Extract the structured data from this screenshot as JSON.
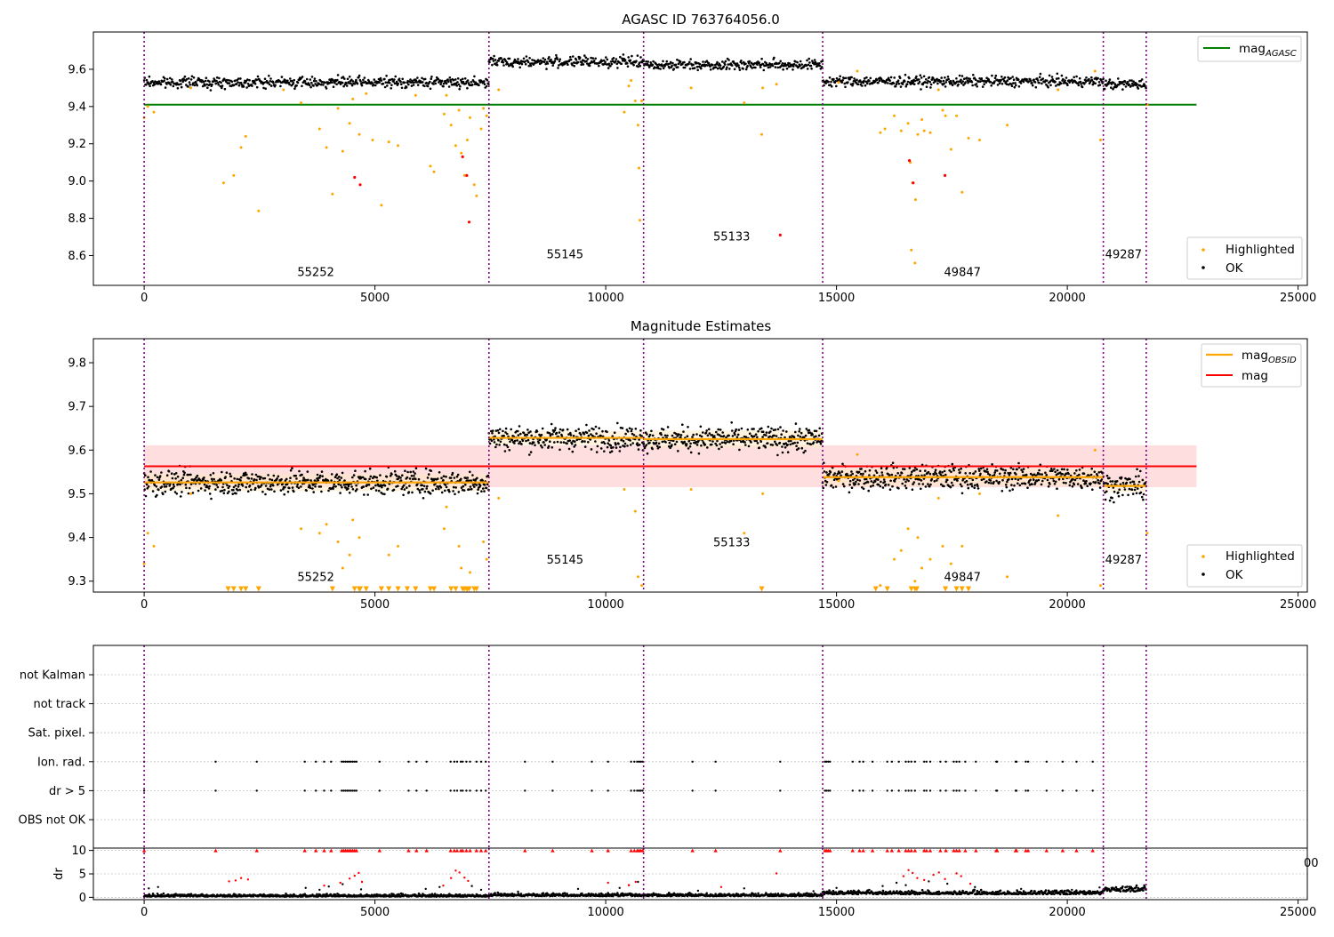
{
  "figure": {
    "title": "AGASC ID 763764056.0"
  },
  "chart_data": [
    {
      "id": "agasc",
      "type": "scatter",
      "title": "",
      "xlabel": "",
      "ylabel": "",
      "xlim": [
        -1100,
        25200
      ],
      "ylim": [
        8.44,
        9.8
      ],
      "xticks": [
        0,
        5000,
        10000,
        15000,
        20000,
        25000
      ],
      "yticks": [
        8.6,
        8.8,
        9.0,
        9.2,
        9.4,
        9.6
      ],
      "xtick_labels": [
        "0",
        "5000",
        "10000",
        "15000",
        "20000",
        "25000"
      ],
      "ytick_labels": [
        "8.6",
        "8.8",
        "9.0",
        "9.2",
        "9.4",
        "9.6"
      ],
      "obsid_boundaries": [
        0,
        7470,
        10820,
        14700,
        20780,
        21710
      ],
      "obsid_labels": [
        {
          "text": "55252",
          "x": 3320,
          "y": 8.49
        },
        {
          "text": "55145",
          "x": 8720,
          "y": 8.585
        },
        {
          "text": "55133",
          "x": 12330,
          "y": 8.68
        },
        {
          "text": "49847",
          "x": 17330,
          "y": 8.49
        },
        {
          "text": "49287",
          "x": 20820,
          "y": 8.585
        }
      ],
      "reference_line": {
        "name": "mag_AGASC",
        "label": "mag",
        "subscript": "AGASC",
        "y": 9.41,
        "x": [
          0,
          22800
        ],
        "color": "#008000"
      },
      "obs_levels": [
        9.53,
        9.64,
        9.625,
        9.535,
        9.52
      ],
      "obs_jitter": 0.014,
      "highlight_rows": [
        [
          0,
          9.34
        ],
        [
          80,
          9.4
        ],
        [
          210,
          9.37
        ],
        [
          1010,
          9.5
        ],
        [
          1720,
          8.99
        ],
        [
          1940,
          9.03
        ],
        [
          2100,
          9.18
        ],
        [
          2200,
          9.24
        ],
        [
          2480,
          8.84
        ],
        [
          3020,
          9.49
        ],
        [
          3400,
          9.42
        ],
        [
          3800,
          9.28
        ],
        [
          3950,
          9.18
        ],
        [
          4080,
          8.93
        ],
        [
          4200,
          9.39
        ],
        [
          4300,
          9.16
        ],
        [
          4450,
          9.31
        ],
        [
          4520,
          9.44
        ],
        [
          4660,
          9.25
        ],
        [
          4810,
          9.47
        ],
        [
          4950,
          9.22
        ],
        [
          5140,
          8.87
        ],
        [
          5300,
          9.21
        ],
        [
          5500,
          9.19
        ],
        [
          5880,
          9.46
        ],
        [
          6200,
          9.08
        ],
        [
          6280,
          9.05
        ],
        [
          6500,
          9.36
        ],
        [
          6550,
          9.46
        ],
        [
          6650,
          9.3
        ],
        [
          6750,
          9.19
        ],
        [
          6820,
          9.38
        ],
        [
          6870,
          9.15
        ],
        [
          6940,
          9.03
        ],
        [
          7000,
          9.22
        ],
        [
          7060,
          9.34
        ],
        [
          7150,
          8.98
        ],
        [
          7200,
          8.92
        ],
        [
          7300,
          9.28
        ],
        [
          7350,
          9.39
        ],
        [
          7420,
          9.35
        ],
        [
          7680,
          9.49
        ],
        [
          10400,
          9.37
        ],
        [
          10640,
          9.43
        ],
        [
          10700,
          9.3
        ],
        [
          10720,
          9.07
        ],
        [
          10740,
          8.79
        ],
        [
          10780,
          9.43
        ],
        [
          10500,
          9.51
        ],
        [
          10550,
          9.54
        ],
        [
          11850,
          9.5
        ],
        [
          13000,
          9.42
        ],
        [
          13380,
          9.25
        ],
        [
          13400,
          9.5
        ],
        [
          13700,
          9.52
        ],
        [
          15050,
          9.53
        ],
        [
          15450,
          9.59
        ],
        [
          15950,
          9.26
        ],
        [
          16050,
          9.28
        ],
        [
          16250,
          9.35
        ],
        [
          16400,
          9.27
        ],
        [
          16550,
          9.31
        ],
        [
          16620,
          8.63
        ],
        [
          16700,
          8.56
        ],
        [
          16600,
          9.1
        ],
        [
          16650,
          8.99
        ],
        [
          16710,
          8.9
        ],
        [
          16760,
          9.25
        ],
        [
          16850,
          9.33
        ],
        [
          16900,
          9.27
        ],
        [
          17030,
          9.26
        ],
        [
          17210,
          9.49
        ],
        [
          17300,
          9.38
        ],
        [
          17360,
          9.35
        ],
        [
          17480,
          9.17
        ],
        [
          17600,
          9.35
        ],
        [
          17720,
          8.94
        ],
        [
          17860,
          9.23
        ],
        [
          18100,
          9.22
        ],
        [
          18700,
          9.3
        ],
        [
          19800,
          9.49
        ],
        [
          20600,
          9.59
        ],
        [
          20720,
          9.22
        ],
        [
          21730,
          9.41
        ]
      ],
      "flagged_rows": [
        [
          4560,
          9.02
        ],
        [
          4680,
          8.98
        ],
        [
          6900,
          9.13
        ],
        [
          6990,
          9.03
        ],
        [
          7040,
          8.78
        ],
        [
          13780,
          8.71
        ],
        [
          16580,
          9.11
        ],
        [
          16660,
          8.99
        ],
        [
          17350,
          9.03
        ]
      ],
      "series": [
        {
          "name": "Highlighted",
          "color": "#ffa500"
        },
        {
          "name": "OK",
          "color": "#000000"
        }
      ],
      "legend_top": "top-right",
      "legend_bottom": "bottom-right"
    },
    {
      "id": "estimates",
      "type": "scatter",
      "title": "Magnitude Estimates",
      "xlabel": "",
      "ylabel": "",
      "xlim": [
        -1100,
        25200
      ],
      "ylim": [
        9.275,
        9.855
      ],
      "xticks": [
        0,
        5000,
        10000,
        15000,
        20000,
        25000
      ],
      "yticks": [
        9.3,
        9.4,
        9.5,
        9.6,
        9.7,
        9.8
      ],
      "xtick_labels": [
        "0",
        "5000",
        "10000",
        "15000",
        "20000",
        "25000"
      ],
      "ytick_labels": [
        "9.3",
        "9.4",
        "9.5",
        "9.6",
        "9.7",
        "9.8"
      ],
      "obsid_boundaries": [
        0,
        7470,
        10820,
        14700,
        20780,
        21710
      ],
      "obsid_labels": [
        {
          "text": "55252",
          "x": 3320,
          "y": 9.3
        },
        {
          "text": "55145",
          "x": 8720,
          "y": 9.34
        },
        {
          "text": "55133",
          "x": 12330,
          "y": 9.38
        },
        {
          "text": "49847",
          "x": 17330,
          "y": 9.3
        },
        {
          "text": "49287",
          "x": 20820,
          "y": 9.34
        }
      ],
      "mag_obsid": [
        {
          "x0": 0,
          "x1": 7470,
          "y": 9.526,
          "sigma": 0.02
        },
        {
          "x0": 7470,
          "x1": 10820,
          "y": 9.628,
          "sigma": 0.016
        },
        {
          "x0": 10820,
          "x1": 14700,
          "y": 9.625,
          "sigma": 0.02
        },
        {
          "x0": 14700,
          "x1": 20780,
          "y": 9.538,
          "sigma": 0.02
        },
        {
          "x0": 20780,
          "x1": 21710,
          "y": 9.518,
          "sigma": 0.014
        }
      ],
      "mag": {
        "y": 9.563,
        "band": [
          9.515,
          9.611
        ],
        "x": [
          0,
          22800
        ],
        "color": "#ff0000"
      },
      "highlight_rows": [
        [
          0,
          9.34
        ],
        [
          80,
          9.41
        ],
        [
          210,
          9.38
        ],
        [
          1010,
          9.5
        ],
        [
          3400,
          9.42
        ],
        [
          3800,
          9.41
        ],
        [
          3950,
          9.43
        ],
        [
          4200,
          9.39
        ],
        [
          4300,
          9.33
        ],
        [
          4450,
          9.36
        ],
        [
          4520,
          9.44
        ],
        [
          4660,
          9.4
        ],
        [
          5300,
          9.36
        ],
        [
          5500,
          9.38
        ],
        [
          6500,
          9.42
        ],
        [
          6550,
          9.47
        ],
        [
          6820,
          9.38
        ],
        [
          6870,
          9.33
        ],
        [
          7060,
          9.32
        ],
        [
          7350,
          9.39
        ],
        [
          7420,
          9.35
        ],
        [
          7680,
          9.49
        ],
        [
          10400,
          9.51
        ],
        [
          10640,
          9.46
        ],
        [
          10700,
          9.31
        ],
        [
          10780,
          9.29
        ],
        [
          11850,
          9.51
        ],
        [
          13000,
          9.41
        ],
        [
          13400,
          9.5
        ],
        [
          15050,
          9.53
        ],
        [
          15450,
          9.59
        ],
        [
          15950,
          9.29
        ],
        [
          16250,
          9.35
        ],
        [
          16400,
          9.37
        ],
        [
          16550,
          9.42
        ],
        [
          16700,
          9.3
        ],
        [
          16760,
          9.4
        ],
        [
          16850,
          9.33
        ],
        [
          17030,
          9.35
        ],
        [
          17210,
          9.49
        ],
        [
          17300,
          9.38
        ],
        [
          17480,
          9.34
        ],
        [
          17720,
          9.38
        ],
        [
          18100,
          9.5
        ],
        [
          18700,
          9.31
        ],
        [
          19800,
          9.45
        ],
        [
          20600,
          9.6
        ],
        [
          20720,
          9.29
        ],
        [
          21730,
          9.41
        ]
      ],
      "lower_limit_x": [
        1820,
        1940,
        2100,
        2200,
        2480,
        4080,
        4560,
        4660,
        4680,
        4810,
        5140,
        5300,
        5500,
        5700,
        5880,
        6200,
        6280,
        6650,
        6750,
        6900,
        6940,
        6990,
        7000,
        7040,
        7150,
        7200,
        13380,
        15850,
        16100,
        16620,
        16700,
        16740,
        17360,
        17600,
        17720,
        17860
      ],
      "series": [
        {
          "name": "Highlighted",
          "color": "#ffa500"
        },
        {
          "name": "OK",
          "color": "#000000"
        }
      ],
      "lines_legend": [
        {
          "name": "mag_OBSID",
          "label": "mag",
          "subscript": "OBSID",
          "color": "#ffa500"
        },
        {
          "name": "mag",
          "label": "mag",
          "subscript": "",
          "color": "#ff0000"
        }
      ]
    },
    {
      "id": "flags",
      "type": "scatter",
      "title": "",
      "xlabel": "",
      "ylabel": "",
      "xlim": [
        -1100,
        25200
      ],
      "categories": [
        "not Kalman",
        "not track",
        "Sat. pixel.",
        "Ion. rad.",
        "dr > 5",
        "OBS not OK"
      ],
      "obsid_boundaries": [
        0,
        7470,
        10820,
        14700,
        20780,
        21710
      ],
      "flag_x": [
        0,
        1550,
        2440,
        3480,
        3720,
        3900,
        4050,
        4280,
        4320,
        4360,
        4400,
        4440,
        4480,
        4520,
        4560,
        4600,
        5100,
        5730,
        5900,
        6120,
        6640,
        6720,
        6780,
        6860,
        6900,
        6980,
        7060,
        7200,
        7300,
        7400,
        8250,
        8850,
        9700,
        10050,
        10550,
        10620,
        10680,
        10720,
        10760,
        10800,
        11880,
        12380,
        13780,
        14750,
        14780,
        14820,
        14860,
        15350,
        15500,
        15580,
        15780,
        16100,
        16200,
        16350,
        16500,
        16560,
        16620,
        16700,
        16900,
        16950,
        17030,
        17250,
        17370,
        17540,
        17600,
        17660,
        17790,
        18020,
        18460,
        18480,
        18880,
        18900,
        19100,
        19150,
        19550,
        19900,
        20200,
        20550
      ],
      "flag_rows": [
        "Ion. rad.",
        "dr > 5"
      ]
    },
    {
      "id": "dr",
      "type": "scatter",
      "title": "",
      "xlabel": "",
      "ylabel": "dr",
      "xlim": [
        -1100,
        25200
      ],
      "ylim": [
        -0.5,
        10.5
      ],
      "xticks": [
        0,
        5000,
        10000,
        15000,
        20000,
        25000
      ],
      "yticks": [
        0,
        5,
        10
      ],
      "xtick_labels": [
        "0",
        "5000",
        "10000",
        "15000",
        "20000",
        "25000"
      ],
      "ytick_labels": [
        "0",
        "5",
        "10"
      ],
      "obsid_boundaries": [
        0,
        7470,
        10820,
        14700,
        20780,
        21710
      ],
      "dr_levels": [
        0.3,
        0.4,
        0.4,
        0.8,
        1.4
      ],
      "outlier_rows": [
        [
          1840,
          3.4
        ],
        [
          1980,
          3.6
        ],
        [
          2100,
          4.1
        ],
        [
          2250,
          3.8
        ],
        [
          3900,
          2.5
        ],
        [
          4250,
          3.1
        ],
        [
          4450,
          4.0
        ],
        [
          4560,
          4.6
        ],
        [
          4650,
          5.2
        ],
        [
          4720,
          3.3
        ],
        [
          6480,
          2.5
        ],
        [
          6650,
          4.1
        ],
        [
          6750,
          5.7
        ],
        [
          6830,
          5.3
        ],
        [
          6940,
          4.2
        ],
        [
          7020,
          3.5
        ],
        [
          10050,
          3.1
        ],
        [
          10500,
          2.6
        ],
        [
          10650,
          3.3
        ],
        [
          12500,
          2.2
        ],
        [
          13700,
          5.1
        ],
        [
          16450,
          4.5
        ],
        [
          16560,
          5.8
        ],
        [
          16650,
          5.2
        ],
        [
          16750,
          4.1
        ],
        [
          16900,
          3.7
        ],
        [
          17100,
          4.8
        ],
        [
          17220,
          5.3
        ],
        [
          17350,
          3.9
        ],
        [
          17600,
          5.1
        ],
        [
          17700,
          4.5
        ],
        [
          17900,
          2.9
        ]
      ],
      "black_rows": [
        [
          100,
          1.9
        ],
        [
          300,
          2.2
        ],
        [
          3500,
          2.0
        ],
        [
          3800,
          1.6
        ],
        [
          4000,
          2.3
        ],
        [
          4300,
          2.8
        ],
        [
          4700,
          1.7
        ],
        [
          6100,
          1.8
        ],
        [
          6400,
          2.2
        ],
        [
          7100,
          2.4
        ],
        [
          7300,
          1.6
        ],
        [
          8100,
          1.2
        ],
        [
          9400,
          1.8
        ],
        [
          10300,
          2.0
        ],
        [
          10500,
          2.6
        ],
        [
          10700,
          3.3
        ],
        [
          12000,
          1.4
        ],
        [
          13000,
          1.9
        ],
        [
          14500,
          1.3
        ],
        [
          15000,
          2.0
        ],
        [
          16000,
          2.4
        ],
        [
          16300,
          3.1
        ],
        [
          16500,
          2.6
        ],
        [
          17000,
          3.4
        ],
        [
          17400,
          2.9
        ],
        [
          18000,
          2.2
        ],
        [
          19000,
          1.8
        ],
        [
          20100,
          1.6
        ],
        [
          20700,
          2.1
        ]
      ],
      "capped_x": [
        0,
        1550,
        2440,
        3480,
        3720,
        3900,
        4050,
        4280,
        4320,
        4360,
        4400,
        4440,
        4480,
        4520,
        4560,
        4600,
        5100,
        5730,
        5900,
        6120,
        6640,
        6720,
        6780,
        6860,
        6900,
        6980,
        7060,
        7200,
        7300,
        7400,
        8250,
        8850,
        9700,
        10050,
        10550,
        10620,
        10680,
        10720,
        10760,
        10800,
        11880,
        12380,
        13780,
        14750,
        14780,
        14820,
        14860,
        15350,
        15500,
        15580,
        15780,
        16100,
        16200,
        16350,
        16500,
        16560,
        16620,
        16700,
        16900,
        16950,
        17030,
        17250,
        17370,
        17540,
        17600,
        17660,
        17790,
        18020,
        18460,
        18480,
        18880,
        18900,
        19100,
        19150,
        19550,
        19900,
        20200,
        20550
      ],
      "cap_value": 10,
      "stray_tick_label": "00"
    }
  ],
  "colors": {
    "ok": "#000000",
    "highlight": "#ffa500",
    "flagged": "#ff0000",
    "obsid_boundary": "#800080",
    "agasc_line": "#008000",
    "mag_line": "#ff0000",
    "mag_band": "#ffc8cc",
    "obsid_band": "#ffe9c4"
  }
}
